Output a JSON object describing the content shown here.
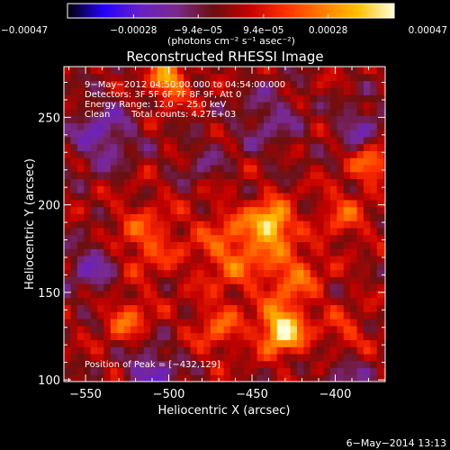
{
  "chart_data": {
    "type": "heatmap",
    "title": "Reconstructed RHESSI Image",
    "xlabel": "Heliocentric X (arcsec)",
    "ylabel": "Heliocentric Y (arcsec)",
    "xlim": [
      -563,
      -370
    ],
    "ylim": [
      99,
      279
    ],
    "x_ticks": [
      -550,
      -500,
      -450,
      -400
    ],
    "y_ticks": [
      100,
      150,
      200,
      250
    ],
    "x_tick_labels": [
      "−550",
      "−500",
      "−450",
      "−400"
    ],
    "y_tick_labels": [
      "100",
      "150",
      "200",
      "250"
    ],
    "grid": false,
    "colorbar": {
      "position": "top",
      "range": [
        -0.00047,
        0.00047
      ],
      "ticks": [
        -0.00047,
        -0.00028,
        -9.4e-05,
        9.4e-05,
        0.00028,
        0.00047
      ],
      "tick_labels": [
        "−0.00047",
        "−0.00028",
        "−9.4e−05",
        "9.4e−05",
        "0.00028",
        "0.00047"
      ],
      "units": "(photons cm⁻² s⁻¹ asec⁻²)"
    },
    "colormap": [
      "#000000",
      "#2400ff",
      "#6a1fc8",
      "#7a2a8a",
      "#6a1010",
      "#c40000",
      "#ff3000",
      "#ff7a00",
      "#ffc000",
      "#ffffd8"
    ],
    "image_extent": {
      "x": [
        -563,
        -370
      ],
      "y": [
        99,
        279
      ]
    },
    "sources": [
      {
        "x": -432,
        "y": 129,
        "peak": 0.00047,
        "sigma": 9
      },
      {
        "x": -438,
        "y": 190,
        "peak": 0.0004,
        "sigma": 8
      },
      {
        "x": -500,
        "y": 271,
        "peak": 0.00032,
        "sigma": 8
      },
      {
        "x": -460,
        "y": 175,
        "peak": 0.00022,
        "sigma": 16
      },
      {
        "x": -515,
        "y": 180,
        "peak": 0.00018,
        "sigma": 14
      },
      {
        "x": -425,
        "y": 160,
        "peak": 0.0002,
        "sigma": 12
      },
      {
        "x": -378,
        "y": 225,
        "peak": 0.00025,
        "sigma": 8
      },
      {
        "x": -395,
        "y": 195,
        "peak": 0.00016,
        "sigma": 10
      },
      {
        "x": -525,
        "y": 135,
        "peak": 0.0002,
        "sigma": 9
      },
      {
        "x": -470,
        "y": 130,
        "peak": 0.00018,
        "sigma": 10
      },
      {
        "x": -395,
        "y": 125,
        "peak": 0.00014,
        "sigma": 10
      },
      {
        "x": -540,
        "y": 240,
        "peak": -0.0002,
        "sigma": 14
      },
      {
        "x": -545,
        "y": 165,
        "peak": -0.00018,
        "sigma": 12
      },
      {
        "x": -510,
        "y": 105,
        "peak": -0.00024,
        "sigma": 10
      },
      {
        "x": -440,
        "y": 250,
        "peak": -0.00014,
        "sigma": 14
      },
      {
        "x": -385,
        "y": 245,
        "peak": -0.00018,
        "sigma": 10
      },
      {
        "x": -395,
        "y": 105,
        "peak": -0.00016,
        "sigma": 10
      },
      {
        "x": -480,
        "y": 225,
        "peak": -0.0001,
        "sigma": 10
      }
    ],
    "annotations": {
      "time_range": "9−May−2012 04:50:00.000 to 04:54:00.000",
      "detectors": "Detectors: 3F 5F 6F 7F 8F 9F, Att 0",
      "energy_range": "Energy Range: 12.0 − 25.0 keV",
      "method": "Clean",
      "total_counts": "Total counts: 4.27E+03",
      "peak_position": "Position of Peak = [−432,129]"
    },
    "footer_date": "6−May−2014 13:13"
  }
}
